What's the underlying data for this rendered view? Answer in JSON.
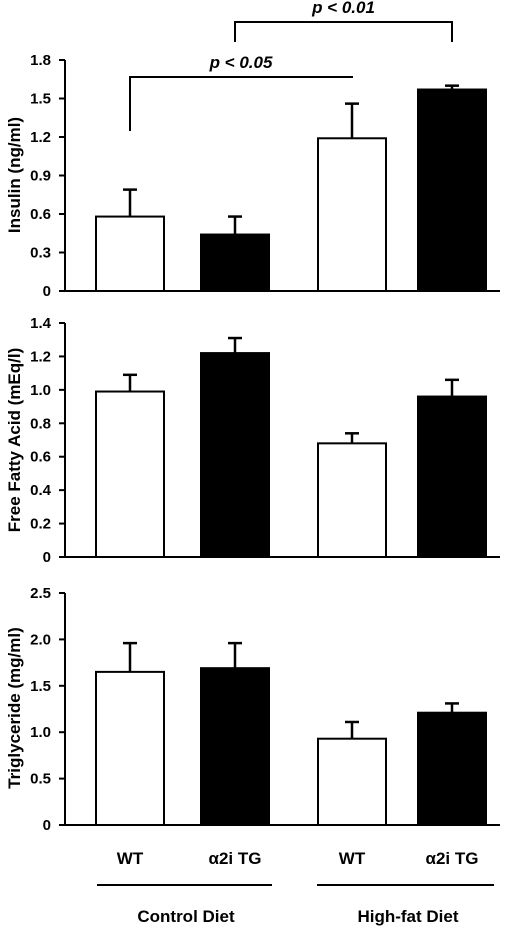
{
  "chart_data": [
    {
      "type": "bar",
      "ylabel": "Insulin (ng/ml)",
      "categories": [
        "WT",
        "α2i TG",
        "WT",
        "α2i TG"
      ],
      "groups": [
        "Control Diet",
        "High-fat Diet"
      ],
      "values": [
        0.58,
        0.44,
        1.19,
        1.57
      ],
      "errors": [
        0.21,
        0.14,
        0.27,
        0.03
      ],
      "fill_colors": [
        "#ffffff",
        "#000000",
        "#ffffff",
        "#000000"
      ],
      "ylim": [
        0,
        1.8
      ],
      "yticks": [
        "0",
        "0.3",
        "0.6",
        "0.9",
        "1.2",
        "1.5",
        "1.8"
      ],
      "yticks_values": [
        0,
        0.3,
        0.6,
        0.9,
        1.2,
        1.5,
        1.8
      ],
      "annotations": [
        {
          "text": "p < 0.05",
          "from_bar": 0,
          "to_bar": 2
        },
        {
          "text": "p < 0.01",
          "from_bar": 1,
          "to_bar": 3
        }
      ]
    },
    {
      "type": "bar",
      "ylabel": "Free Fatty Acid (mEq/l)",
      "categories": [
        "WT",
        "α2i TG",
        "WT",
        "α2i TG"
      ],
      "groups": [
        "Control Diet",
        "High-fat Diet"
      ],
      "values": [
        0.99,
        1.22,
        0.68,
        0.96
      ],
      "errors": [
        0.1,
        0.09,
        0.06,
        0.1
      ],
      "fill_colors": [
        "#ffffff",
        "#000000",
        "#ffffff",
        "#000000"
      ],
      "ylim": [
        0,
        1.4
      ],
      "yticks": [
        "0",
        "0.2",
        "0.4",
        "0.6",
        "0.8",
        "1.0",
        "1.2",
        "1.4"
      ],
      "yticks_values": [
        0,
        0.2,
        0.4,
        0.6,
        0.8,
        1.0,
        1.2,
        1.4
      ]
    },
    {
      "type": "bar",
      "ylabel": "Triglyceride (mg/ml)",
      "categories": [
        "WT",
        "α2i TG",
        "WT",
        "α2i TG"
      ],
      "groups": [
        "Control Diet",
        "High-fat Diet"
      ],
      "values": [
        1.65,
        1.69,
        0.93,
        1.21
      ],
      "errors": [
        0.31,
        0.27,
        0.18,
        0.1
      ],
      "fill_colors": [
        "#ffffff",
        "#000000",
        "#ffffff",
        "#000000"
      ],
      "ylim": [
        0,
        2.5
      ],
      "yticks": [
        "0",
        "0.5",
        "1.0",
        "1.5",
        "2.0",
        "2.5"
      ],
      "yticks_values": [
        0,
        0.5,
        1.0,
        1.5,
        2.0,
        2.5
      ]
    }
  ],
  "x_axis": {
    "category_labels": [
      "WT",
      "α2i TG",
      "WT",
      "α2i TG"
    ],
    "group_labels": [
      "Control Diet",
      "High-fat Diet"
    ]
  }
}
